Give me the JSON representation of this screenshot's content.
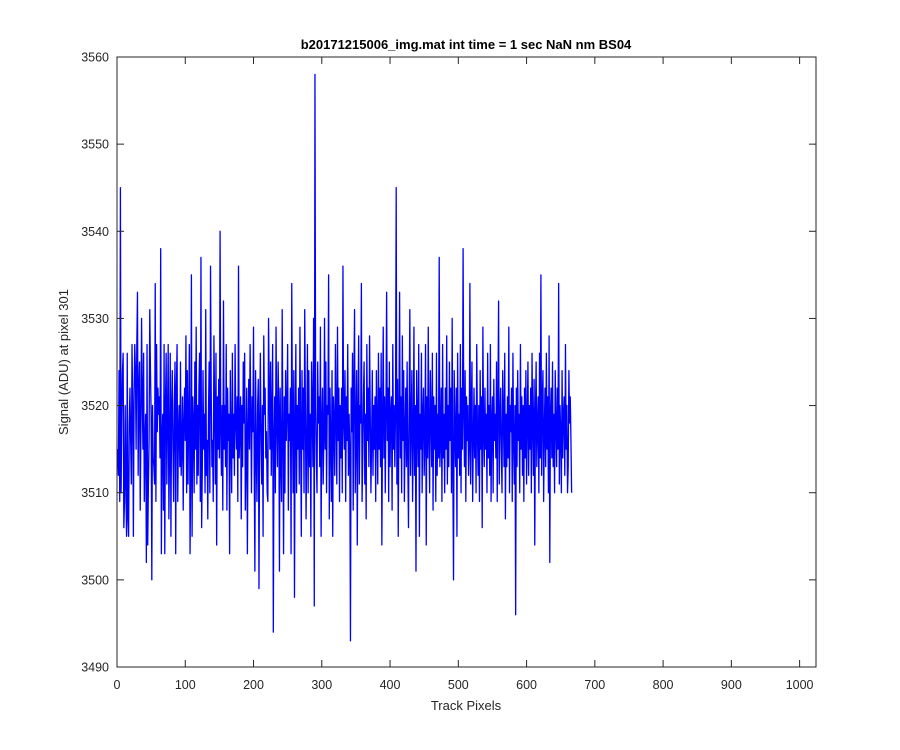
{
  "chart_data": {
    "type": "line",
    "title": "b20171215006_img.mat int time = 1 sec  NaN nm BS04",
    "xlabel": "Track Pixels",
    "ylabel": "Signal (ADU) at pixel 301",
    "xlim": [
      0,
      1024
    ],
    "ylim": [
      3490,
      3560
    ],
    "xticks": [
      "0",
      "100",
      "200",
      "300",
      "400",
      "500",
      "600",
      "700",
      "800",
      "900",
      "1000"
    ],
    "yticks": [
      "3490",
      "3500",
      "3510",
      "3520",
      "3530",
      "3540",
      "3550",
      "3560"
    ],
    "grid": false,
    "legend": "none",
    "line_color": "#0000ff",
    "series": [
      {
        "x_start": 1,
        "x_step": 1,
        "values": [
          3515,
          3512,
          3524,
          3509,
          3545,
          3510,
          3519,
          3524,
          3526,
          3506,
          3509,
          3520,
          3511,
          3505,
          3526,
          3507,
          3505,
          3518,
          3522,
          3516,
          3511,
          3527,
          3520,
          3505,
          3521,
          3527,
          3524,
          3515,
          3527,
          3533,
          3512,
          3522,
          3525,
          3508,
          3517,
          3530,
          3521,
          3515,
          3526,
          3509,
          3516,
          3519,
          3502,
          3527,
          3504,
          3511,
          3516,
          3531,
          3524,
          3519,
          3500,
          3520,
          3514,
          3513,
          3511,
          3534,
          3509,
          3527,
          3517,
          3522,
          3519,
          3521,
          3514,
          3538,
          3503,
          3516,
          3519,
          3508,
          3527,
          3503,
          3520,
          3526,
          3511,
          3519,
          3527,
          3507,
          3515,
          3526,
          3505,
          3520,
          3524,
          3515,
          3509,
          3520,
          3525,
          3503,
          3522,
          3527,
          3509,
          3517,
          3520,
          3513,
          3525,
          3512,
          3515,
          3521,
          3508,
          3518,
          3522,
          3516,
          3528,
          3510,
          3524,
          3511,
          3519,
          3527,
          3503,
          3512,
          3535,
          3505,
          3521,
          3518,
          3510,
          3525,
          3515,
          3529,
          3511,
          3520,
          3512,
          3522,
          3526,
          3509,
          3537,
          3506,
          3513,
          3524,
          3515,
          3519,
          3510,
          3531,
          3512,
          3516,
          3507,
          3519,
          3525,
          3510,
          3536,
          3522,
          3513,
          3516,
          3509,
          3528,
          3520,
          3511,
          3526,
          3504,
          3521,
          3515,
          3523,
          3514,
          3540,
          3517,
          3512,
          3520,
          3508,
          3532,
          3515,
          3520,
          3513,
          3527,
          3508,
          3522,
          3516,
          3519,
          3503,
          3524,
          3516,
          3510,
          3526,
          3514,
          3519,
          3512,
          3527,
          3518,
          3515,
          3521,
          3509,
          3536,
          3514,
          3517,
          3521,
          3507,
          3520,
          3513,
          3525,
          3518,
          3526,
          3508,
          3514,
          3522,
          3503,
          3517,
          3523,
          3515,
          3527,
          3519,
          3510,
          3521,
          3517,
          3529,
          3513,
          3501,
          3524,
          3515,
          3509,
          3520,
          3523,
          3499,
          3518,
          3526,
          3516,
          3511,
          3520,
          3505,
          3528,
          3519,
          3522,
          3514,
          3517,
          3510,
          3509,
          3530,
          3522,
          3515,
          3525,
          3512,
          3519,
          3527,
          3494,
          3516,
          3521,
          3510,
          3529,
          3518,
          3513,
          3525,
          3520,
          3501,
          3522,
          3514,
          3509,
          3531,
          3517,
          3503,
          3521,
          3510,
          3524,
          3516,
          3520,
          3527,
          3508,
          3519,
          3516,
          3522,
          3503,
          3534,
          3519,
          3510,
          3524,
          3498,
          3518,
          3527,
          3510,
          3520,
          3515,
          3522,
          3511,
          3529,
          3517,
          3505,
          3524,
          3515,
          3522,
          3510,
          3531,
          3520,
          3507,
          3516,
          3527,
          3510,
          3524,
          3513,
          3519,
          3505,
          3525,
          3520,
          3513,
          3530,
          3497,
          3558,
          3520,
          3514,
          3510,
          3525,
          3518,
          3521,
          3513,
          3529,
          3505,
          3518,
          3522,
          3511,
          3516,
          3530,
          3515,
          3525,
          3510,
          3520,
          3519,
          3535,
          3507,
          3522,
          3516,
          3509,
          3524,
          3505,
          3521,
          3518,
          3512,
          3527,
          3519,
          3511,
          3529,
          3516,
          3522,
          3509,
          3520,
          3514,
          3522,
          3510,
          3536,
          3518,
          3515,
          3524,
          3509,
          3521,
          3516,
          3527,
          3512,
          3519,
          3515,
          3493,
          3522,
          3517,
          3526,
          3508,
          3523,
          3531,
          3510,
          3517,
          3524,
          3504,
          3519,
          3528,
          3511,
          3520,
          3518,
          3534,
          3509,
          3514,
          3521,
          3525,
          3511,
          3519,
          3507,
          3527,
          3516,
          3522,
          3513,
          3528,
          3519,
          3510,
          3516,
          3524,
          3512,
          3520,
          3515,
          3521,
          3509,
          3524,
          3518,
          3511,
          3526,
          3515,
          3522,
          3513,
          3526,
          3504,
          3518,
          3529,
          3514,
          3521,
          3510,
          3519,
          3533,
          3516,
          3522,
          3509,
          3525,
          3513,
          3519,
          3521,
          3508,
          3527,
          3515,
          3520,
          3513,
          3519,
          3545,
          3511,
          3523,
          3505,
          3519,
          3533,
          3514,
          3521,
          3510,
          3528,
          3516,
          3524,
          3509,
          3517,
          3522,
          3513,
          3525,
          3514,
          3506,
          3520,
          3531,
          3512,
          3518,
          3524,
          3509,
          3516,
          3529,
          3512,
          3520,
          3501,
          3524,
          3518,
          3513,
          3527,
          3505,
          3519,
          3515,
          3526,
          3510,
          3519,
          3522,
          3512,
          3516,
          3527,
          3504,
          3521,
          3514,
          3529,
          3516,
          3510,
          3524,
          3519,
          3513,
          3526,
          3508,
          3521,
          3515,
          3520,
          3509,
          3526,
          3512,
          3519,
          3514,
          3537,
          3513,
          3516,
          3522,
          3509,
          3527,
          3514,
          3519,
          3510,
          3522,
          3515,
          3528,
          3511,
          3520,
          3513,
          3525,
          3516,
          3522,
          3510,
          3530,
          3512,
          3500,
          3524,
          3517,
          3513,
          3522,
          3505,
          3526,
          3514,
          3519,
          3512,
          3527,
          3510,
          3522,
          3515,
          3538,
          3519,
          3513,
          3524,
          3509,
          3521,
          3516,
          3520,
          3512,
          3515,
          3534,
          3511,
          3519,
          3525,
          3509,
          3516,
          3522,
          3514,
          3520,
          3510,
          3527,
          3517,
          3512,
          3520,
          3509,
          3524,
          3515,
          3521,
          3506,
          3529,
          3517,
          3513,
          3522,
          3515,
          3519,
          3510,
          3526,
          3514,
          3520,
          3512,
          3527,
          3509,
          3518,
          3521,
          3510,
          3523,
          3516,
          3519,
          3514,
          3525,
          3509,
          3520,
          3532,
          3511,
          3518,
          3522,
          3515,
          3510,
          3524,
          3519,
          3513,
          3526,
          3507,
          3519,
          3513,
          3521,
          3514,
          3529,
          3510,
          3520,
          3517,
          3522,
          3509,
          3526,
          3516,
          3511,
          3520,
          3496,
          3522,
          3513,
          3524,
          3516,
          3519,
          3510,
          3527,
          3515,
          3521,
          3512,
          3520,
          3509,
          3522,
          3514,
          3524,
          3511,
          3518,
          3525,
          3512,
          3520,
          3515,
          3522,
          3510,
          3526,
          3518,
          3512,
          3523,
          3504,
          3519,
          3525,
          3513,
          3518,
          3521,
          3510,
          3526,
          3514,
          3535,
          3512,
          3520,
          3524,
          3509,
          3517,
          3522,
          3513,
          3526,
          3515,
          3521,
          3510,
          3528,
          3502,
          3519,
          3522,
          3514,
          3525,
          3513,
          3519,
          3510,
          3524,
          3518,
          3513,
          3522,
          3515,
          3534,
          3511,
          3520,
          3517,
          3510,
          3524,
          3514,
          3519,
          3521,
          3512,
          3527,
          3515,
          3520,
          3510,
          3513,
          3524,
          3518,
          3521,
          3516,
          3510
        ]
      }
    ]
  }
}
